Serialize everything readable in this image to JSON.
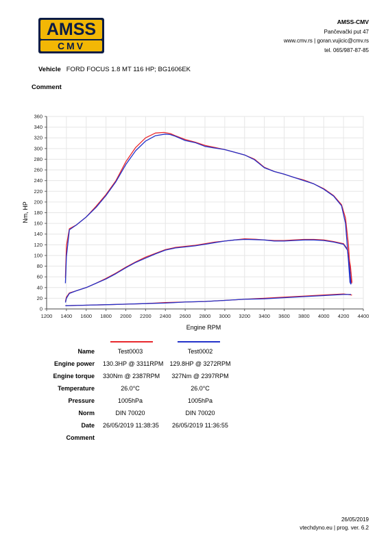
{
  "logo": {
    "top_text": "AMSS",
    "bottom_text": "CMV"
  },
  "company": {
    "name": "AMSS-CMV",
    "address": "Pančevački put 47",
    "web": "www.cmv.rs | goran.vujicic@cmv.rs",
    "phone": "tel. 065/987-87-85"
  },
  "vehicle": {
    "label": "Vehicle",
    "value": "FORD FOCUS 1.8 MT 116 HP; BG1606EK"
  },
  "comment_label": "Comment",
  "chart_data": {
    "type": "line",
    "xlabel": "Engine RPM",
    "ylabel": "Nm, HP",
    "xlim": [
      1200,
      4400
    ],
    "ylim": [
      0,
      360
    ],
    "xticks": [
      1200,
      1400,
      1600,
      1800,
      2000,
      2200,
      2400,
      2600,
      2800,
      3000,
      3200,
      3400,
      3600,
      3800,
      4000,
      4200,
      4400
    ],
    "yticks": [
      0,
      20,
      40,
      60,
      80,
      100,
      120,
      140,
      160,
      180,
      200,
      220,
      240,
      260,
      280,
      300,
      320,
      340,
      360
    ],
    "grid": true,
    "series": [
      {
        "color": "#e8262b",
        "kind": "torque",
        "x": [
          1390,
          1400,
          1430,
          1500,
          1600,
          1700,
          1800,
          1900,
          2000,
          2100,
          2200,
          2300,
          2387,
          2450,
          2500,
          2600,
          2700,
          2800,
          2900,
          3000,
          3100,
          3200,
          3300,
          3400,
          3500,
          3600,
          3700,
          3800,
          3900,
          4000,
          4100,
          4180,
          4220,
          4250,
          4270,
          4285
        ],
        "y": [
          58,
          118,
          150,
          157,
          172,
          192,
          214,
          240,
          275,
          302,
          320,
          329,
          330,
          328,
          324,
          317,
          312,
          306,
          302,
          298,
          293,
          288,
          280,
          265,
          257,
          252,
          246,
          241,
          234,
          225,
          212,
          195,
          170,
          120,
          60,
          48
        ]
      },
      {
        "color": "#2231c9",
        "kind": "torque",
        "x": [
          1390,
          1400,
          1430,
          1500,
          1600,
          1700,
          1800,
          1900,
          2000,
          2100,
          2200,
          2300,
          2397,
          2450,
          2500,
          2600,
          2700,
          2800,
          2900,
          3000,
          3100,
          3200,
          3300,
          3400,
          3500,
          3600,
          3700,
          3800,
          3900,
          4000,
          4100,
          4180,
          4220,
          4250,
          4265,
          4275
        ],
        "y": [
          48,
          98,
          148,
          157,
          172,
          190,
          212,
          238,
          270,
          296,
          314,
          324,
          327,
          326,
          323,
          315,
          311,
          304,
          301,
          298,
          293,
          288,
          279,
          264,
          257,
          252,
          246,
          240,
          234,
          224,
          211,
          193,
          160,
          90,
          50,
          46
        ]
      },
      {
        "color": "#e8262b",
        "kind": "power",
        "x": [
          1390,
          1400,
          1430,
          1500,
          1600,
          1700,
          1800,
          1900,
          2000,
          2100,
          2200,
          2300,
          2400,
          2500,
          2600,
          2700,
          2800,
          2900,
          3000,
          3100,
          3200,
          3311,
          3400,
          3500,
          3600,
          3700,
          3800,
          3900,
          4000,
          4100,
          4200,
          4240,
          4270,
          4285
        ],
        "y": [
          14,
          22,
          30,
          34,
          40,
          48,
          57,
          67,
          78,
          88,
          97,
          104,
          111,
          115,
          117,
          119,
          122,
          125,
          127,
          129,
          131,
          130.3,
          129,
          128,
          128,
          129,
          130,
          130,
          129,
          126,
          122,
          112,
          80,
          50
        ]
      },
      {
        "color": "#2231c9",
        "kind": "power",
        "x": [
          1390,
          1400,
          1430,
          1500,
          1600,
          1700,
          1800,
          1900,
          2000,
          2100,
          2200,
          2300,
          2400,
          2500,
          2600,
          2700,
          2800,
          2900,
          3000,
          3100,
          3200,
          3272,
          3400,
          3500,
          3600,
          3700,
          3800,
          3900,
          4000,
          4100,
          4200,
          4240,
          4265,
          4275
        ],
        "y": [
          12,
          20,
          29,
          34,
          40,
          48,
          56,
          66,
          77,
          87,
          95,
          103,
          110,
          114,
          116,
          118,
          121,
          124,
          127,
          129,
          130,
          129.8,
          129,
          127,
          127,
          128,
          129,
          129,
          128,
          125,
          121,
          110,
          70,
          46
        ]
      },
      {
        "color": "#e8262b",
        "kind": "loss",
        "x": [
          1390,
          1600,
          1800,
          2000,
          2200,
          2400,
          2600,
          2800,
          3000,
          3200,
          3400,
          3600,
          3800,
          4000,
          4200,
          4285
        ],
        "y": [
          6,
          7,
          8,
          9,
          10,
          12,
          13,
          14,
          16,
          18,
          20,
          22,
          24,
          26,
          28,
          26
        ]
      },
      {
        "color": "#2231c9",
        "kind": "loss",
        "x": [
          1390,
          1600,
          1800,
          2000,
          2200,
          2400,
          2600,
          2800,
          3000,
          3200,
          3400,
          3600,
          3800,
          4000,
          4200,
          4275
        ],
        "y": [
          6,
          7,
          8,
          9,
          10,
          11,
          13,
          14,
          16,
          18,
          19,
          21,
          23,
          25,
          27,
          27
        ]
      }
    ]
  },
  "results": {
    "rows": [
      {
        "label": "Name",
        "v1": "Test0003",
        "v2": "Test0002"
      },
      {
        "label": "Engine power",
        "v1": "130.3HP @ 3311RPM",
        "v2": "129.8HP @ 3272RPM"
      },
      {
        "label": "Engine torque",
        "v1": "330Nm @ 2387RPM",
        "v2": "327Nm @ 2397RPM"
      },
      {
        "label": "Temperature",
        "v1": "26.0°C",
        "v2": "26.0°C"
      },
      {
        "label": "Pressure",
        "v1": "1005hPa",
        "v2": "1005hPa"
      },
      {
        "label": "Norm",
        "v1": "DIN 70020",
        "v2": "DIN 70020"
      },
      {
        "label": "Date",
        "v1": "26/05/2019 11:38:35",
        "v2": "26/05/2019 11:36:55"
      },
      {
        "label": "Comment",
        "v1": "",
        "v2": ""
      }
    ],
    "color1": "#e8262b",
    "color2": "#2231c9"
  },
  "footer": {
    "date": "26/05/2019",
    "prog": "vtechdyno.eu | prog. ver. 6.2"
  }
}
